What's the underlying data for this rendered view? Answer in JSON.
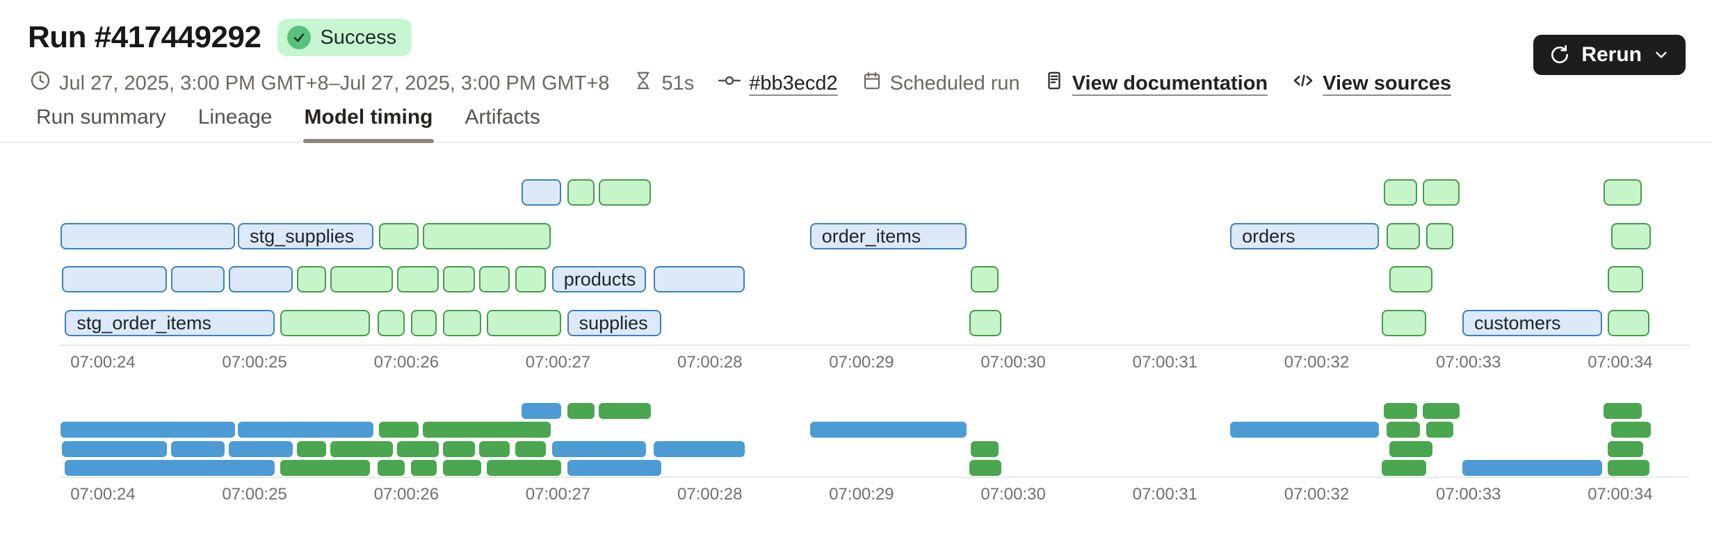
{
  "header": {
    "title": "Run #417449292",
    "status": "Success",
    "rerun_label": "Rerun",
    "meta": {
      "date_range": "Jul 27, 2025, 3:00 PM GMT+8–Jul 27, 2025, 3:00 PM GMT+8",
      "duration": "51s",
      "commit": "#bb3ecd2",
      "trigger": "Scheduled run",
      "docs_link": "View documentation",
      "sources_link": "View sources"
    }
  },
  "tabs": [
    {
      "label": "Run summary",
      "active": false
    },
    {
      "label": "Lineage",
      "active": false
    },
    {
      "label": "Model timing",
      "active": true
    },
    {
      "label": "Artifacts",
      "active": false
    }
  ],
  "colors": {
    "badge_bg": "#c7f6d2",
    "badge_dot": "#57c27d",
    "rerun_bg": "#1d1d20",
    "detail_blue_fill": "#dbe9f9",
    "detail_blue_border": "#3d7fc1",
    "detail_green_fill": "#c6f5ca",
    "detail_green_border": "#449c4c",
    "mini_blue": "#4c9bd4",
    "mini_green": "#4aa64f"
  },
  "chart_data": {
    "type": "gantt",
    "title": "Model timing",
    "axis": {
      "tick_labels": [
        "07:00:24",
        "07:00:25",
        "07:00:26",
        "07:00:27",
        "07:00:28",
        "07:00:29",
        "07:00:30",
        "07:00:31",
        "07:00:32",
        "07:00:33",
        "07:00:34"
      ],
      "tick_interval_s": 1,
      "domain_s": [
        -0.403,
        10.477
      ],
      "grid": false
    },
    "rows": [
      [
        {
          "start_s": 2.76,
          "end_s": 3.04,
          "color": "blue",
          "label": ""
        },
        {
          "start_s": 3.06,
          "end_s": 3.26,
          "color": "green",
          "label": ""
        },
        {
          "start_s": 3.27,
          "end_s": 3.63,
          "color": "green",
          "label": ""
        },
        {
          "start_s": 8.44,
          "end_s": 8.68,
          "color": "green",
          "label": ""
        },
        {
          "start_s": 8.7,
          "end_s": 8.96,
          "color": "green",
          "label": ""
        },
        {
          "start_s": 9.89,
          "end_s": 10.16,
          "color": "green",
          "label": ""
        }
      ],
      [
        {
          "start_s": -0.28,
          "end_s": 0.89,
          "color": "blue",
          "label": ""
        },
        {
          "start_s": 0.89,
          "end_s": 1.8,
          "color": "blue",
          "label": "stg_supplies"
        },
        {
          "start_s": 1.82,
          "end_s": 2.1,
          "color": "green",
          "label": ""
        },
        {
          "start_s": 2.11,
          "end_s": 2.97,
          "color": "green",
          "label": ""
        },
        {
          "start_s": 4.66,
          "end_s": 5.71,
          "color": "blue",
          "label": "order_items"
        },
        {
          "start_s": 7.43,
          "end_s": 8.43,
          "color": "blue",
          "label": "orders"
        },
        {
          "start_s": 8.46,
          "end_s": 8.7,
          "color": "green",
          "label": ""
        },
        {
          "start_s": 8.72,
          "end_s": 8.92,
          "color": "green",
          "label": ""
        },
        {
          "start_s": 9.94,
          "end_s": 10.22,
          "color": "green",
          "label": ""
        }
      ],
      [
        {
          "start_s": -0.27,
          "end_s": 0.44,
          "color": "blue",
          "label": ""
        },
        {
          "start_s": 0.45,
          "end_s": 0.82,
          "color": "blue",
          "label": ""
        },
        {
          "start_s": 0.83,
          "end_s": 1.27,
          "color": "blue",
          "label": ""
        },
        {
          "start_s": 1.28,
          "end_s": 1.49,
          "color": "green",
          "label": ""
        },
        {
          "start_s": 1.5,
          "end_s": 1.93,
          "color": "green",
          "label": ""
        },
        {
          "start_s": 1.94,
          "end_s": 2.23,
          "color": "green",
          "label": ""
        },
        {
          "start_s": 2.24,
          "end_s": 2.47,
          "color": "green",
          "label": ""
        },
        {
          "start_s": 2.48,
          "end_s": 2.7,
          "color": "green",
          "label": ""
        },
        {
          "start_s": 2.72,
          "end_s": 2.94,
          "color": "green",
          "label": ""
        },
        {
          "start_s": 2.96,
          "end_s": 3.6,
          "color": "blue",
          "label": "products"
        },
        {
          "start_s": 3.63,
          "end_s": 4.25,
          "color": "blue",
          "label": ""
        },
        {
          "start_s": 5.72,
          "end_s": 5.92,
          "color": "green",
          "label": ""
        },
        {
          "start_s": 8.48,
          "end_s": 8.78,
          "color": "green",
          "label": ""
        },
        {
          "start_s": 9.92,
          "end_s": 10.17,
          "color": "green",
          "label": ""
        }
      ],
      [
        {
          "start_s": -0.25,
          "end_s": 1.15,
          "color": "blue",
          "label": "stg_order_items"
        },
        {
          "start_s": 1.17,
          "end_s": 1.78,
          "color": "green",
          "label": ""
        },
        {
          "start_s": 1.81,
          "end_s": 2.01,
          "color": "green",
          "label": ""
        },
        {
          "start_s": 2.03,
          "end_s": 2.22,
          "color": "green",
          "label": ""
        },
        {
          "start_s": 2.24,
          "end_s": 2.51,
          "color": "green",
          "label": ""
        },
        {
          "start_s": 2.53,
          "end_s": 3.04,
          "color": "green",
          "label": ""
        },
        {
          "start_s": 3.06,
          "end_s": 3.7,
          "color": "blue",
          "label": "supplies"
        },
        {
          "start_s": 5.71,
          "end_s": 5.94,
          "color": "green",
          "label": ""
        },
        {
          "start_s": 8.43,
          "end_s": 8.74,
          "color": "green",
          "label": ""
        },
        {
          "start_s": 8.96,
          "end_s": 9.9,
          "color": "blue",
          "label": "customers"
        },
        {
          "start_s": 9.92,
          "end_s": 10.21,
          "color": "green",
          "label": ""
        }
      ]
    ]
  }
}
